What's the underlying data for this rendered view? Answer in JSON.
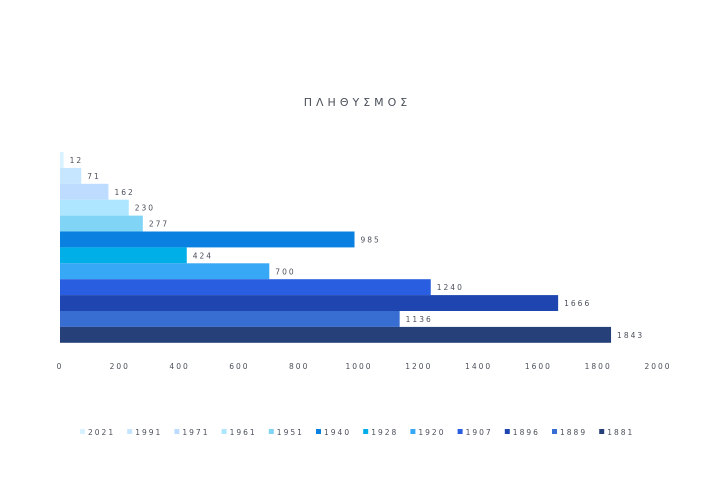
{
  "chart_data": {
    "type": "bar",
    "orientation": "horizontal",
    "title": "ΠΛΗΘΥΣΜΟΣ",
    "xlabel": "",
    "ylabel": "",
    "xlim": [
      0,
      2000
    ],
    "x_ticks": [
      0,
      200,
      400,
      600,
      800,
      1000,
      1200,
      1400,
      1600,
      1800,
      2000
    ],
    "legend_position": "bottom",
    "grid": false,
    "series": [
      {
        "name": "2021",
        "value": 12,
        "color": "#d9f2ff"
      },
      {
        "name": "1991",
        "value": 71,
        "color": "#c6e5ff"
      },
      {
        "name": "1971",
        "value": 162,
        "color": "#bddcff"
      },
      {
        "name": "1961",
        "value": 230,
        "color": "#aee6ff"
      },
      {
        "name": "1951",
        "value": 277,
        "color": "#80d4f5"
      },
      {
        "name": "1940",
        "value": 985,
        "color": "#0a80e0"
      },
      {
        "name": "1928",
        "value": 424,
        "color": "#00aee8"
      },
      {
        "name": "1920",
        "value": 700,
        "color": "#36a8f5"
      },
      {
        "name": "1907",
        "value": 1240,
        "color": "#2a5ee0"
      },
      {
        "name": "1896",
        "value": 1666,
        "color": "#1f46b0"
      },
      {
        "name": "1889",
        "value": 1136,
        "color": "#386ed2"
      },
      {
        "name": "1881",
        "value": 1843,
        "color": "#26407a"
      }
    ]
  }
}
